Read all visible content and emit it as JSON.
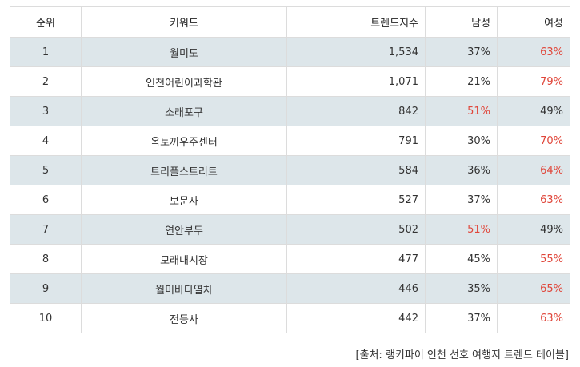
{
  "table": {
    "headers": {
      "rank": "순위",
      "keyword": "키워드",
      "trend_index": "트렌드지수",
      "male": "남성",
      "female": "여성"
    },
    "rows": [
      {
        "rank": "1",
        "keyword": "월미도",
        "trend_index": "1,534",
        "male": "37%",
        "female": "63%",
        "male_hot": false,
        "female_hot": true
      },
      {
        "rank": "2",
        "keyword": "인천어린이과학관",
        "trend_index": "1,071",
        "male": "21%",
        "female": "79%",
        "male_hot": false,
        "female_hot": true
      },
      {
        "rank": "3",
        "keyword": "소래포구",
        "trend_index": "842",
        "male": "51%",
        "female": "49%",
        "male_hot": true,
        "female_hot": false
      },
      {
        "rank": "4",
        "keyword": "옥토끼우주센터",
        "trend_index": "791",
        "male": "30%",
        "female": "70%",
        "male_hot": false,
        "female_hot": true
      },
      {
        "rank": "5",
        "keyword": "트리플스트리트",
        "trend_index": "584",
        "male": "36%",
        "female": "64%",
        "male_hot": false,
        "female_hot": true
      },
      {
        "rank": "6",
        "keyword": "보문사",
        "trend_index": "527",
        "male": "37%",
        "female": "63%",
        "male_hot": false,
        "female_hot": true
      },
      {
        "rank": "7",
        "keyword": "연안부두",
        "trend_index": "502",
        "male": "51%",
        "female": "49%",
        "male_hot": true,
        "female_hot": false
      },
      {
        "rank": "8",
        "keyword": "모래내시장",
        "trend_index": "477",
        "male": "45%",
        "female": "55%",
        "male_hot": false,
        "female_hot": true
      },
      {
        "rank": "9",
        "keyword": "월미바다열차",
        "trend_index": "446",
        "male": "35%",
        "female": "65%",
        "male_hot": false,
        "female_hot": true
      },
      {
        "rank": "10",
        "keyword": "전등사",
        "trend_index": "442",
        "male": "37%",
        "female": "63%",
        "male_hot": false,
        "female_hot": true
      }
    ]
  },
  "source": "[출처: 랭키파이 인천 선호 여행지 트렌드 테이블]",
  "colors": {
    "highlight": "#e0463a",
    "stripe": "#dde6ea",
    "border": "#dcdcdc"
  }
}
